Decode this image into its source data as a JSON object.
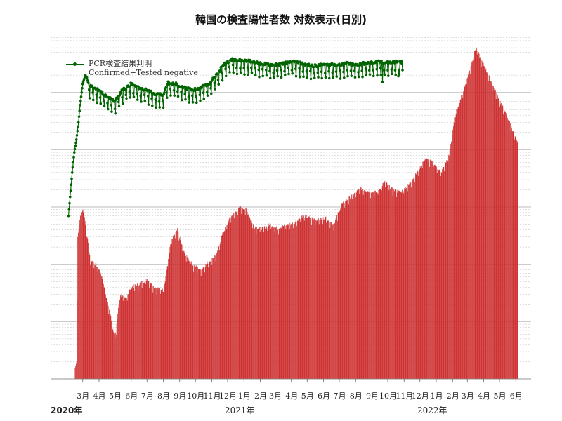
{
  "title": "韓国の検査陽性者数 対数表示(日別)",
  "legend": {
    "line1": "PCR検査結果判明",
    "line2": "Confirmed+Tested negative"
  },
  "colors": {
    "bars": "#cc2a2a",
    "line": "#006400",
    "grid": "#bbbbbb"
  },
  "x_axis": {
    "month_labels": [
      "3月",
      "4月",
      "5月",
      "6月",
      "7月",
      "8月",
      "9月",
      "10月",
      "11月",
      "12月",
      "1月",
      "2月",
      "3月",
      "4月",
      "5月",
      "6月",
      "7月",
      "8月",
      "9月",
      "10月",
      "11月",
      "12月",
      "1月",
      "2月",
      "3月",
      "4月",
      "5月",
      "6月"
    ],
    "year_labels": [
      "2020年",
      "2021年",
      "2022年"
    ]
  },
  "chart_data": {
    "type": "bar",
    "title": "韓国の検査陽性者数 対数表示(日別)",
    "y_scale": "log",
    "y_tick_labels_shown": false,
    "grid": true,
    "legend_position": "top-left",
    "x_start": "2020-02-01",
    "x_end": "2022-06-05",
    "series": [
      {
        "name": "PCR検査結果判明 / Confirmed+Tested negative",
        "type": "line",
        "anchors_date_value": [
          [
            "2020-02-03",
            700
          ],
          [
            "2020-02-06",
            1500
          ],
          [
            "2020-02-10",
            4000
          ],
          [
            "2020-02-14",
            9000
          ],
          [
            "2020-02-18",
            15000
          ],
          [
            "2020-02-22",
            30000
          ],
          [
            "2020-02-25",
            60000
          ],
          [
            "2020-03-01",
            140000
          ],
          [
            "2020-03-06",
            200000
          ],
          [
            "2020-03-15",
            130000
          ],
          [
            "2020-04-01",
            110000
          ],
          [
            "2020-04-15",
            85000
          ],
          [
            "2020-05-01",
            70000
          ],
          [
            "2020-05-15",
            110000
          ],
          [
            "2020-06-01",
            140000
          ],
          [
            "2020-06-15",
            120000
          ],
          [
            "2020-07-01",
            110000
          ],
          [
            "2020-07-15",
            95000
          ],
          [
            "2020-08-01",
            90000
          ],
          [
            "2020-08-10",
            150000
          ],
          [
            "2020-08-25",
            140000
          ],
          [
            "2020-09-10",
            120000
          ],
          [
            "2020-09-25",
            110000
          ],
          [
            "2020-10-10",
            120000
          ],
          [
            "2020-10-25",
            140000
          ],
          [
            "2020-11-10",
            200000
          ],
          [
            "2020-11-25",
            320000
          ],
          [
            "2020-12-10",
            380000
          ],
          [
            "2020-12-25",
            360000
          ],
          [
            "2021-01-15",
            350000
          ],
          [
            "2021-02-01",
            320000
          ],
          [
            "2021-02-15",
            310000
          ],
          [
            "2021-03-01",
            300000
          ],
          [
            "2021-03-15",
            320000
          ],
          [
            "2021-04-01",
            340000
          ],
          [
            "2021-04-15",
            330000
          ],
          [
            "2021-05-01",
            300000
          ],
          [
            "2021-05-15",
            290000
          ],
          [
            "2021-06-01",
            300000
          ],
          [
            "2021-06-15",
            310000
          ],
          [
            "2021-07-01",
            300000
          ],
          [
            "2021-07-15",
            320000
          ],
          [
            "2021-08-01",
            300000
          ],
          [
            "2021-08-15",
            320000
          ],
          [
            "2021-09-01",
            330000
          ],
          [
            "2021-09-15",
            340000
          ],
          [
            "2021-10-01",
            330000
          ],
          [
            "2021-10-15",
            340000
          ],
          [
            "2021-10-29",
            330000
          ]
        ]
      },
      {
        "name": "",
        "type": "bar",
        "anchors_date_value": [
          [
            "2020-02-01",
            1
          ],
          [
            "2020-02-10",
            1
          ],
          [
            "2020-02-18",
            2
          ],
          [
            "2020-02-20",
            300
          ],
          [
            "2020-02-25",
            700
          ],
          [
            "2020-03-01",
            900
          ],
          [
            "2020-03-05",
            600
          ],
          [
            "2020-03-15",
            120
          ],
          [
            "2020-03-25",
            100
          ],
          [
            "2020-04-05",
            70
          ],
          [
            "2020-04-15",
            25
          ],
          [
            "2020-04-25",
            10
          ],
          [
            "2020-05-01",
            5
          ],
          [
            "2020-05-10",
            30
          ],
          [
            "2020-05-20",
            25
          ],
          [
            "2020-06-01",
            40
          ],
          [
            "2020-06-15",
            45
          ],
          [
            "2020-07-01",
            55
          ],
          [
            "2020-07-15",
            40
          ],
          [
            "2020-08-01",
            35
          ],
          [
            "2020-08-15",
            250
          ],
          [
            "2020-08-27",
            400
          ],
          [
            "2020-09-10",
            150
          ],
          [
            "2020-09-25",
            100
          ],
          [
            "2020-10-10",
            80
          ],
          [
            "2020-10-25",
            110
          ],
          [
            "2020-11-10",
            150
          ],
          [
            "2020-11-20",
            320
          ],
          [
            "2020-12-05",
            650
          ],
          [
            "2020-12-25",
            1000
          ],
          [
            "2021-01-05",
            900
          ],
          [
            "2021-01-20",
            450
          ],
          [
            "2021-02-05",
            420
          ],
          [
            "2021-02-20",
            500
          ],
          [
            "2021-03-05",
            420
          ],
          [
            "2021-03-20",
            480
          ],
          [
            "2021-04-05",
            520
          ],
          [
            "2021-04-20",
            700
          ],
          [
            "2021-05-05",
            650
          ],
          [
            "2021-05-20",
            600
          ],
          [
            "2021-06-05",
            650
          ],
          [
            "2021-06-20",
            500
          ],
          [
            "2021-07-05",
            1100
          ],
          [
            "2021-07-25",
            1600
          ],
          [
            "2021-08-10",
            2100
          ],
          [
            "2021-08-25",
            1900
          ],
          [
            "2021-09-10",
            1800
          ],
          [
            "2021-09-25",
            2800
          ],
          [
            "2021-10-10",
            2000
          ],
          [
            "2021-10-25",
            1800
          ],
          [
            "2021-11-10",
            2500
          ],
          [
            "2021-11-25",
            4000
          ],
          [
            "2021-12-10",
            7000
          ],
          [
            "2021-12-25",
            6000
          ],
          [
            "2022-01-10",
            4000
          ],
          [
            "2022-01-25",
            8000
          ],
          [
            "2022-02-05",
            40000
          ],
          [
            "2022-02-20",
            100000
          ],
          [
            "2022-03-05",
            250000
          ],
          [
            "2022-03-17",
            620000
          ],
          [
            "2022-03-25",
            400000
          ],
          [
            "2022-04-05",
            250000
          ],
          [
            "2022-04-20",
            120000
          ],
          [
            "2022-05-05",
            60000
          ],
          [
            "2022-05-20",
            30000
          ],
          [
            "2022-06-05",
            12000
          ]
        ]
      }
    ]
  }
}
